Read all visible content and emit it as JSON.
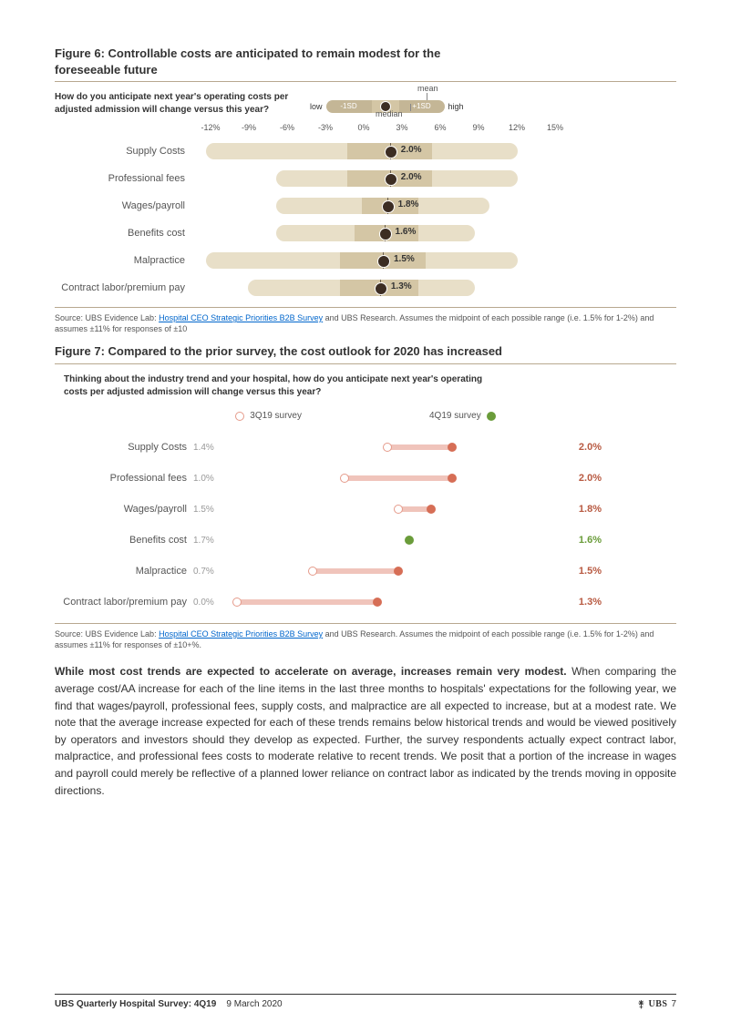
{
  "page": {
    "footer_title": "UBS Quarterly Hospital Survey: 4Q19",
    "footer_date": "9 March 2020",
    "footer_logo": "UBS",
    "page_num": "7"
  },
  "fig6": {
    "title_line1": "Figure 6: Controllable costs are anticipated to remain modest for the",
    "title_line2": "foreseeable future",
    "question": "How do you anticipate next year's operating costs per adjusted admission will change versus this year?",
    "legend": {
      "low": "low",
      "minus_sd": "-1SD",
      "plus_sd": "+1SD",
      "high": "high",
      "mean": "mean",
      "median": "median"
    },
    "axis": [
      "-12%",
      "-9%",
      "-6%",
      "-3%",
      "0%",
      "3%",
      "6%",
      "9%",
      "12%",
      "15%"
    ],
    "axis_min": -12,
    "axis_max": 15,
    "colors": {
      "full": "#e8dfc8",
      "sd": "#d4c6a5",
      "median": "#6b5f4f",
      "mean": "#3c2d23"
    },
    "rows": [
      {
        "cat": "Supply Costs",
        "low": -11,
        "high": 11,
        "sd_l": -1,
        "sd_r": 5,
        "median": 2,
        "mean": 2,
        "val": "2.0%"
      },
      {
        "cat": "Professional fees",
        "low": -6,
        "high": 11,
        "sd_l": -1,
        "sd_r": 5,
        "median": 2,
        "mean": 2,
        "val": "2.0%"
      },
      {
        "cat": "Wages/payroll",
        "low": -6,
        "high": 9,
        "sd_l": 0,
        "sd_r": 4,
        "median": 1.8,
        "mean": 1.8,
        "val": "1.8%"
      },
      {
        "cat": "Benefits cost",
        "low": -6,
        "high": 8,
        "sd_l": -0.5,
        "sd_r": 4,
        "median": 1.6,
        "mean": 1.6,
        "val": "1.6%"
      },
      {
        "cat": "Malpractice",
        "low": -11,
        "high": 11,
        "sd_l": -1.5,
        "sd_r": 4.5,
        "median": 1.5,
        "mean": 1.5,
        "val": "1.5%"
      },
      {
        "cat": "Contract labor/premium pay",
        "low": -8,
        "high": 8,
        "sd_l": -1.5,
        "sd_r": 4,
        "median": 1.3,
        "mean": 1.3,
        "val": "1.3%"
      }
    ],
    "source_pre": "Source:  UBS Evidence Lab: ",
    "source_link": "Hospital CEO Strategic Priorities B2B Survey",
    "source_post": " and UBS Research. Assumes the midpoint of each possible range (i.e. 1.5% for 1-2%) and assumes ±11% for responses of ±10"
  },
  "fig7": {
    "title": "Figure 7: Compared to the prior survey, the cost outlook for 2020 has increased",
    "question": "Thinking about the industry trend and your hospital, how do you anticipate next year's operating costs per adjusted admission will change versus this year?",
    "legend": {
      "s1": "3Q19 survey",
      "s2": "4Q19 survey"
    },
    "colors": {
      "s1_border": "#e59a8a",
      "bar_up": "#f0c4bb",
      "dot_up": "#d66e56",
      "val_up": "#b85a42",
      "dot_down": "#6a9c3a",
      "val_down": "#6a9c3a"
    },
    "x_min": 0,
    "x_max": 2.2,
    "rows": [
      {
        "cat": "Supply Costs",
        "v1": 1.4,
        "v2": 2.0,
        "v1s": "1.4%",
        "v2s": "2.0%",
        "dir": "up"
      },
      {
        "cat": "Professional fees",
        "v1": 1.0,
        "v2": 2.0,
        "v1s": "1.0%",
        "v2s": "2.0%",
        "dir": "up"
      },
      {
        "cat": "Wages/payroll",
        "v1": 1.5,
        "v2": 1.8,
        "v1s": "1.5%",
        "v2s": "1.8%",
        "dir": "up"
      },
      {
        "cat": "Benefits cost",
        "v1": 1.7,
        "v2": 1.6,
        "v1s": "1.7%",
        "v2s": "1.6%",
        "dir": "down"
      },
      {
        "cat": "Malpractice",
        "v1": 0.7,
        "v2": 1.5,
        "v1s": "0.7%",
        "v2s": "1.5%",
        "dir": "up"
      },
      {
        "cat": "Contract labor/premium pay",
        "v1": 0.0,
        "v2": 1.3,
        "v1s": "0.0%",
        "v2s": "1.3%",
        "dir": "up"
      }
    ],
    "source_pre": "Source:  UBS Evidence Lab: ",
    "source_link": "Hospital CEO Strategic Priorities B2B Survey",
    "source_post": " and UBS Research. Assumes the midpoint of each possible range (i.e. 1.5% for 1-2%) and assumes ±11% for responses of ±10+%."
  },
  "body": {
    "lead": "While most cost trends are expected to accelerate on average, increases remain very modest.",
    "rest": " When comparing the average cost/AA increase for each of the line items in the last three months to hospitals' expectations for the following year, we find that wages/payroll, professional fees, supply costs, and malpractice are all expected to increase, but at a modest rate.  We note that the average increase expected for each of these trends remains below historical trends and would be viewed positively by operators and investors should they develop as expected. Further, the survey respondents actually expect contract labor, malpractice, and professional fees costs to moderate relative to recent trends. We posit that a portion of the increase in wages and payroll could merely be reflective of a planned lower reliance on contract labor as indicated by the trends moving in opposite directions."
  }
}
